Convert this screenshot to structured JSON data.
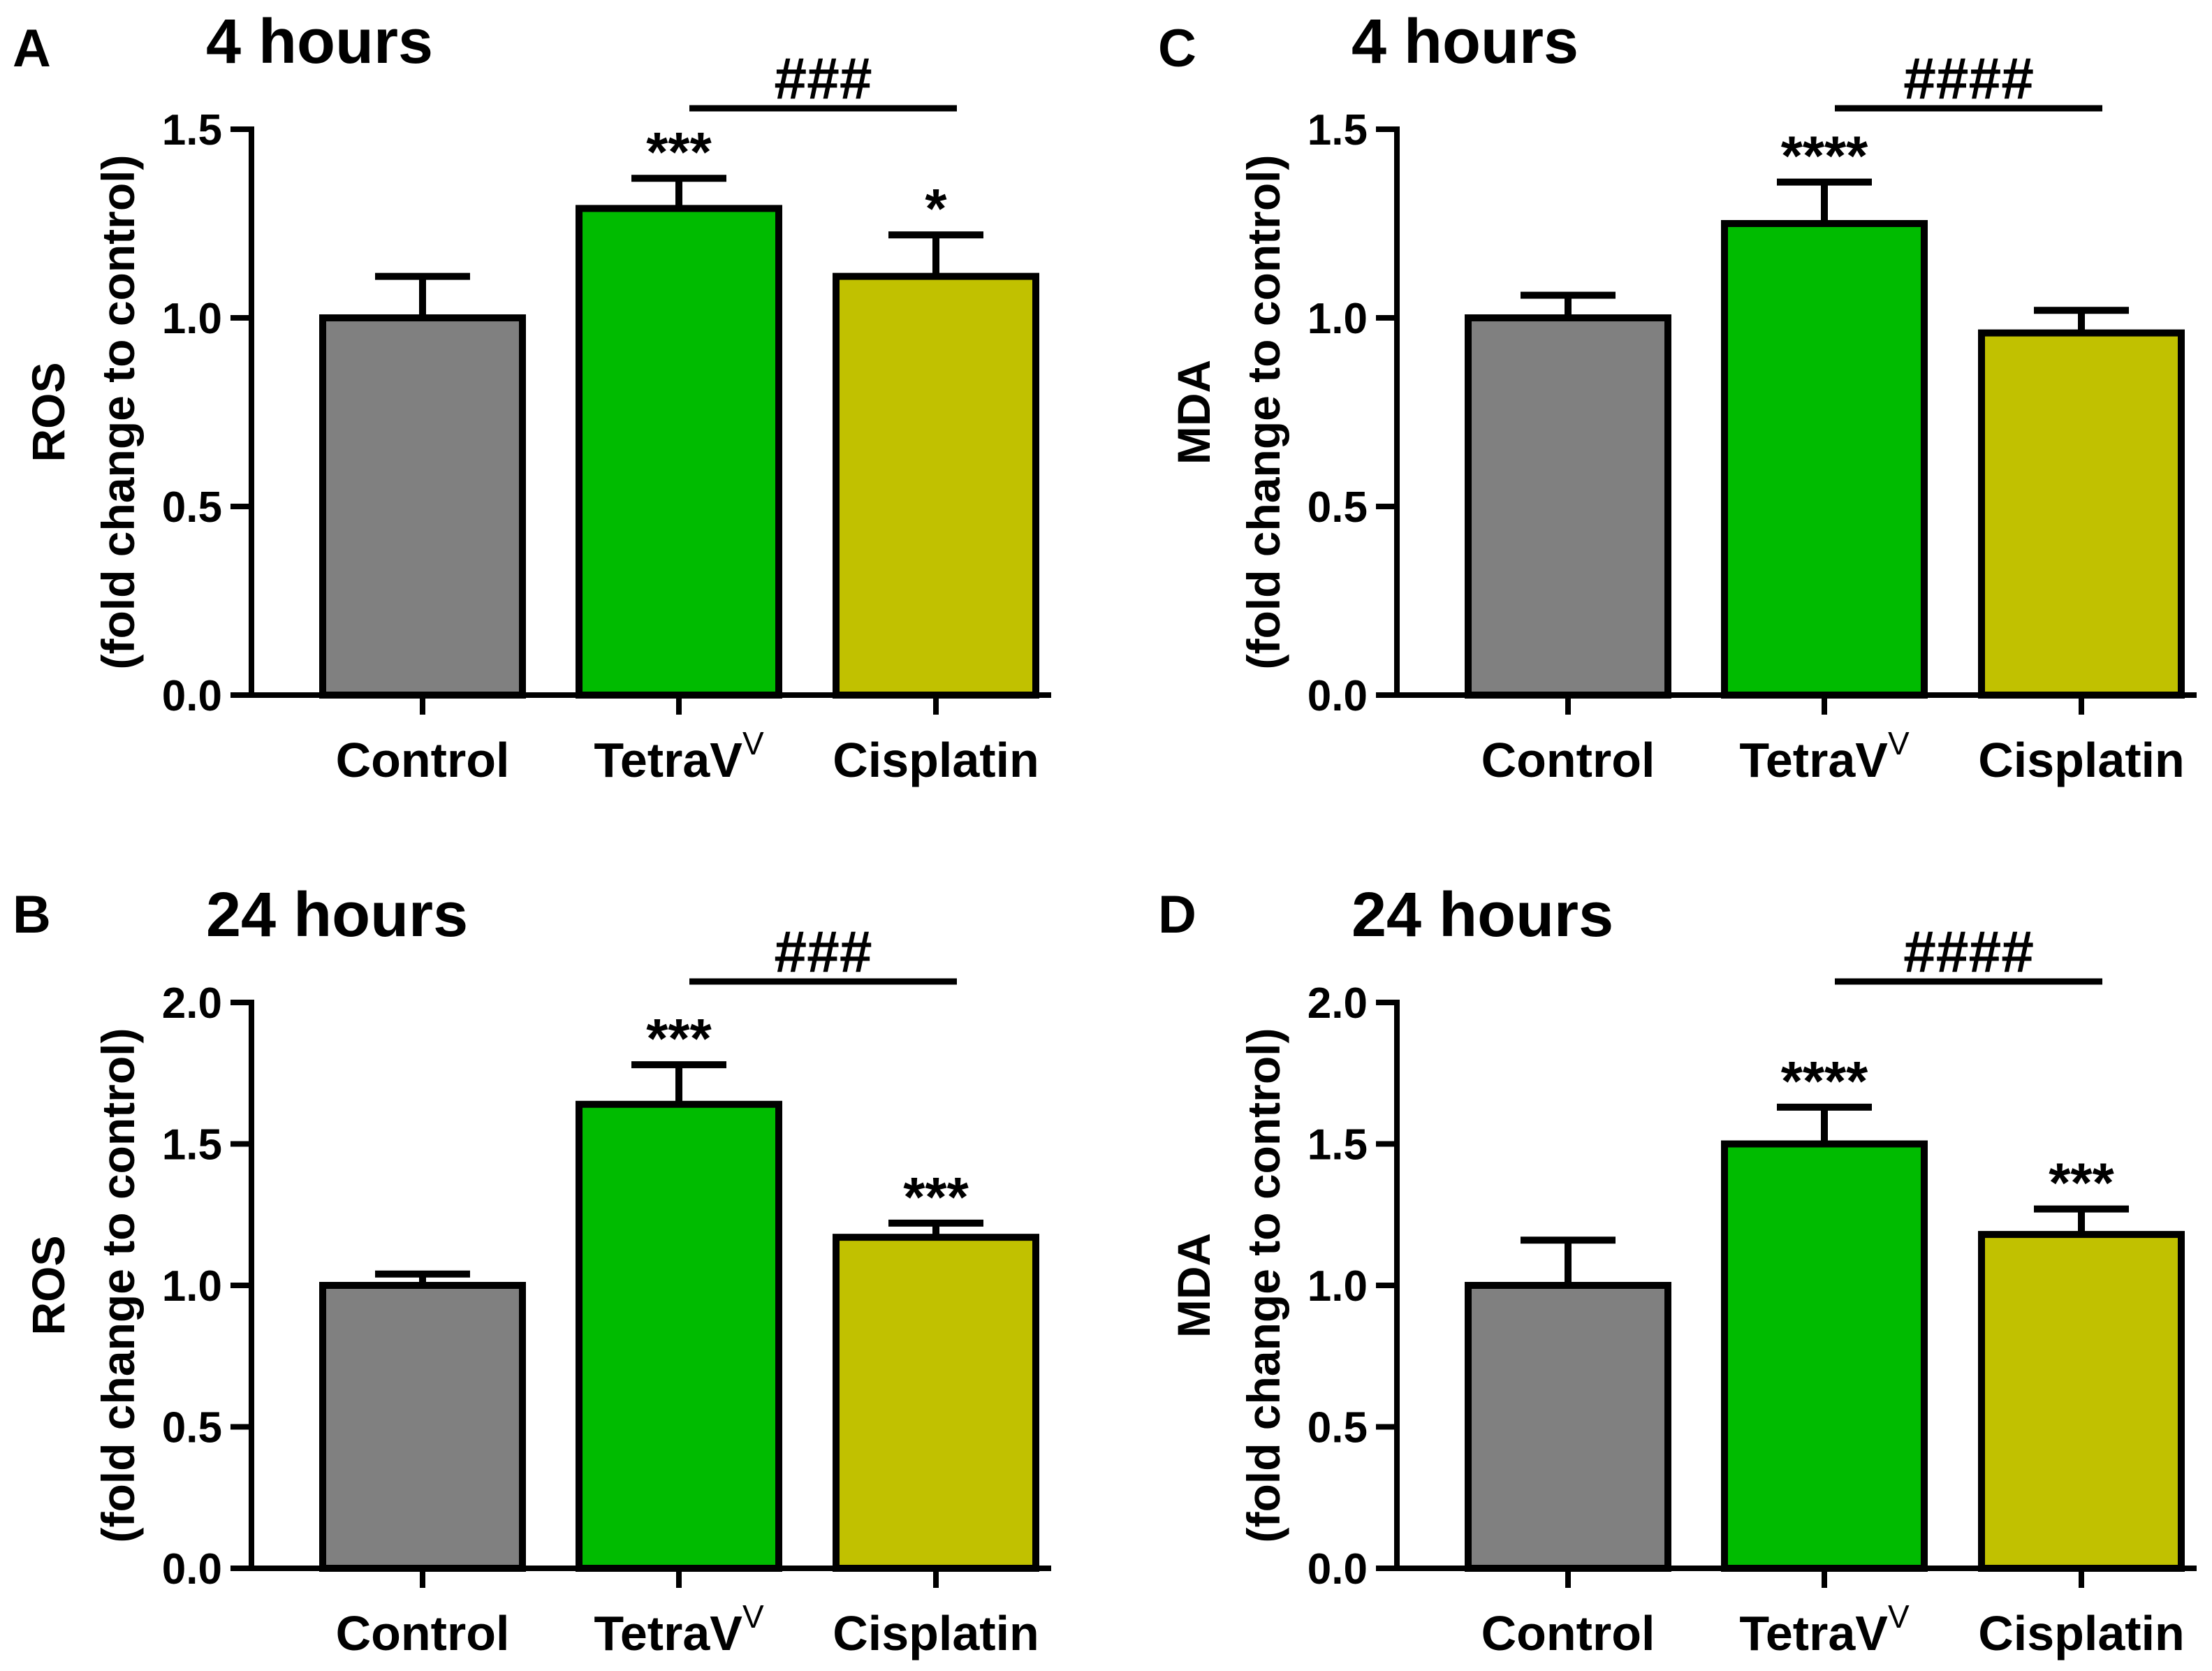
{
  "figure": {
    "panels": [
      "A",
      "B",
      "C",
      "D"
    ]
  },
  "colors": {
    "Control": "#808080",
    "TetraV": "#00bb00",
    "Cisplatin": "#c1c100",
    "axis": "#000000"
  },
  "chart_data": [
    {
      "panel": "A",
      "title": "4 hours",
      "type": "bar",
      "ylabel_main": "ROS",
      "ylabel_sub": "(fold change to control)",
      "categories": [
        {
          "name": "Control",
          "sup": ""
        },
        {
          "name": "TetraV",
          "sup": "V"
        },
        {
          "name": "Cisplatin",
          "sup": ""
        }
      ],
      "values": [
        1.0,
        1.29,
        1.11
      ],
      "errors": [
        0.11,
        0.08,
        0.11
      ],
      "significance": [
        "",
        "***",
        "*"
      ],
      "comparison": {
        "from": 1,
        "to": 2,
        "label": "###"
      },
      "ylim": [
        0,
        1.5
      ],
      "yticks": [
        "0.0",
        "0.5",
        "1.0",
        "1.5"
      ]
    },
    {
      "panel": "B",
      "title": "24 hours",
      "type": "bar",
      "ylabel_main": "ROS",
      "ylabel_sub": "(fold change to control)",
      "categories": [
        {
          "name": "Control",
          "sup": ""
        },
        {
          "name": "TetraV",
          "sup": "V"
        },
        {
          "name": "Cisplatin",
          "sup": ""
        }
      ],
      "values": [
        1.0,
        1.64,
        1.17
      ],
      "errors": [
        0.04,
        0.14,
        0.05
      ],
      "significance": [
        "",
        "***",
        "***"
      ],
      "comparison": {
        "from": 1,
        "to": 2,
        "label": "###"
      },
      "ylim": [
        0,
        2.0
      ],
      "yticks": [
        "0.0",
        "0.5",
        "1.0",
        "1.5",
        "2.0"
      ]
    },
    {
      "panel": "C",
      "title": "4 hours",
      "type": "bar",
      "ylabel_main": "MDA",
      "ylabel_sub": "(fold change to control)",
      "categories": [
        {
          "name": "Control",
          "sup": ""
        },
        {
          "name": "TetraV",
          "sup": "V"
        },
        {
          "name": "Cisplatin",
          "sup": ""
        }
      ],
      "values": [
        1.0,
        1.25,
        0.96
      ],
      "errors": [
        0.06,
        0.11,
        0.06
      ],
      "significance": [
        "",
        "****",
        ""
      ],
      "comparison": {
        "from": 1,
        "to": 2,
        "label": "####"
      },
      "ylim": [
        0,
        1.5
      ],
      "yticks": [
        "0.0",
        "0.5",
        "1.0",
        "1.5"
      ]
    },
    {
      "panel": "D",
      "title": "24 hours",
      "type": "bar",
      "ylabel_main": "MDA",
      "ylabel_sub": "(fold change to control)",
      "categories": [
        {
          "name": "Control",
          "sup": ""
        },
        {
          "name": "TetraV",
          "sup": "V"
        },
        {
          "name": "Cisplatin",
          "sup": ""
        }
      ],
      "values": [
        1.0,
        1.5,
        1.18
      ],
      "errors": [
        0.16,
        0.13,
        0.09
      ],
      "significance": [
        "",
        "****",
        "***"
      ],
      "comparison": {
        "from": 1,
        "to": 2,
        "label": "####"
      },
      "ylim": [
        0,
        2.0
      ],
      "yticks": [
        "0.0",
        "0.5",
        "1.0",
        "1.5",
        "2.0"
      ]
    }
  ]
}
